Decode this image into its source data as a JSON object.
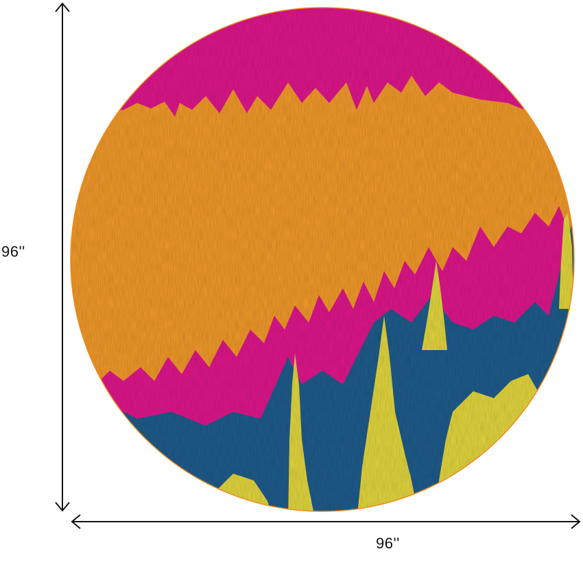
{
  "product": {
    "shape": "round",
    "colors": {
      "magenta": "#E0168C",
      "orange": "#F39A2A",
      "orange_dark": "#EE8A1E",
      "navy": "#1E5C8C",
      "yellow": "#E4D73E",
      "background": "#FFFFFF",
      "dimension_line": "#111111"
    }
  },
  "dimensions": {
    "height_label": "96''",
    "width_label": "96''"
  }
}
